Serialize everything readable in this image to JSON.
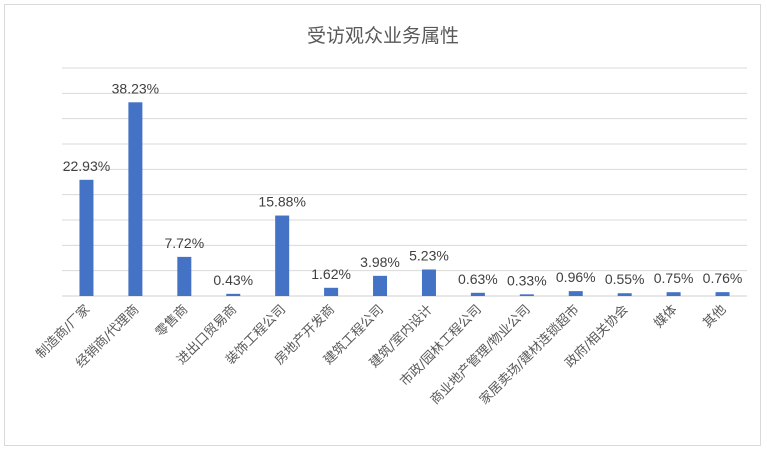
{
  "chart_data": {
    "type": "bar",
    "title": "受访观众业务属性",
    "categories": [
      "制造商/厂家",
      "经销商/代理商",
      "零售商",
      "进出口贸易商",
      "装饰工程公司",
      "房地产开发商",
      "建筑工程公司",
      "建筑/室内设计",
      "市政/园林工程公司",
      "商业地产管理/物业公司",
      "家居卖场/建材连锁超市",
      "政府/相关协会",
      "媒体",
      "其他"
    ],
    "values": [
      22.93,
      38.23,
      7.72,
      0.43,
      15.88,
      1.62,
      3.98,
      5.23,
      0.63,
      0.33,
      0.96,
      0.55,
      0.75,
      0.76
    ],
    "data_labels": [
      "22.93%",
      "38.23%",
      "7.72%",
      "0.43%",
      "15.88%",
      "1.62%",
      "3.98%",
      "5.23%",
      "0.63%",
      "0.33%",
      "0.96%",
      "0.55%",
      "0.75%",
      "0.76%"
    ],
    "ylim": [
      0,
      45
    ],
    "grid": true,
    "bar_color": "#4472c4",
    "grid_color": "#d9d9d9"
  }
}
